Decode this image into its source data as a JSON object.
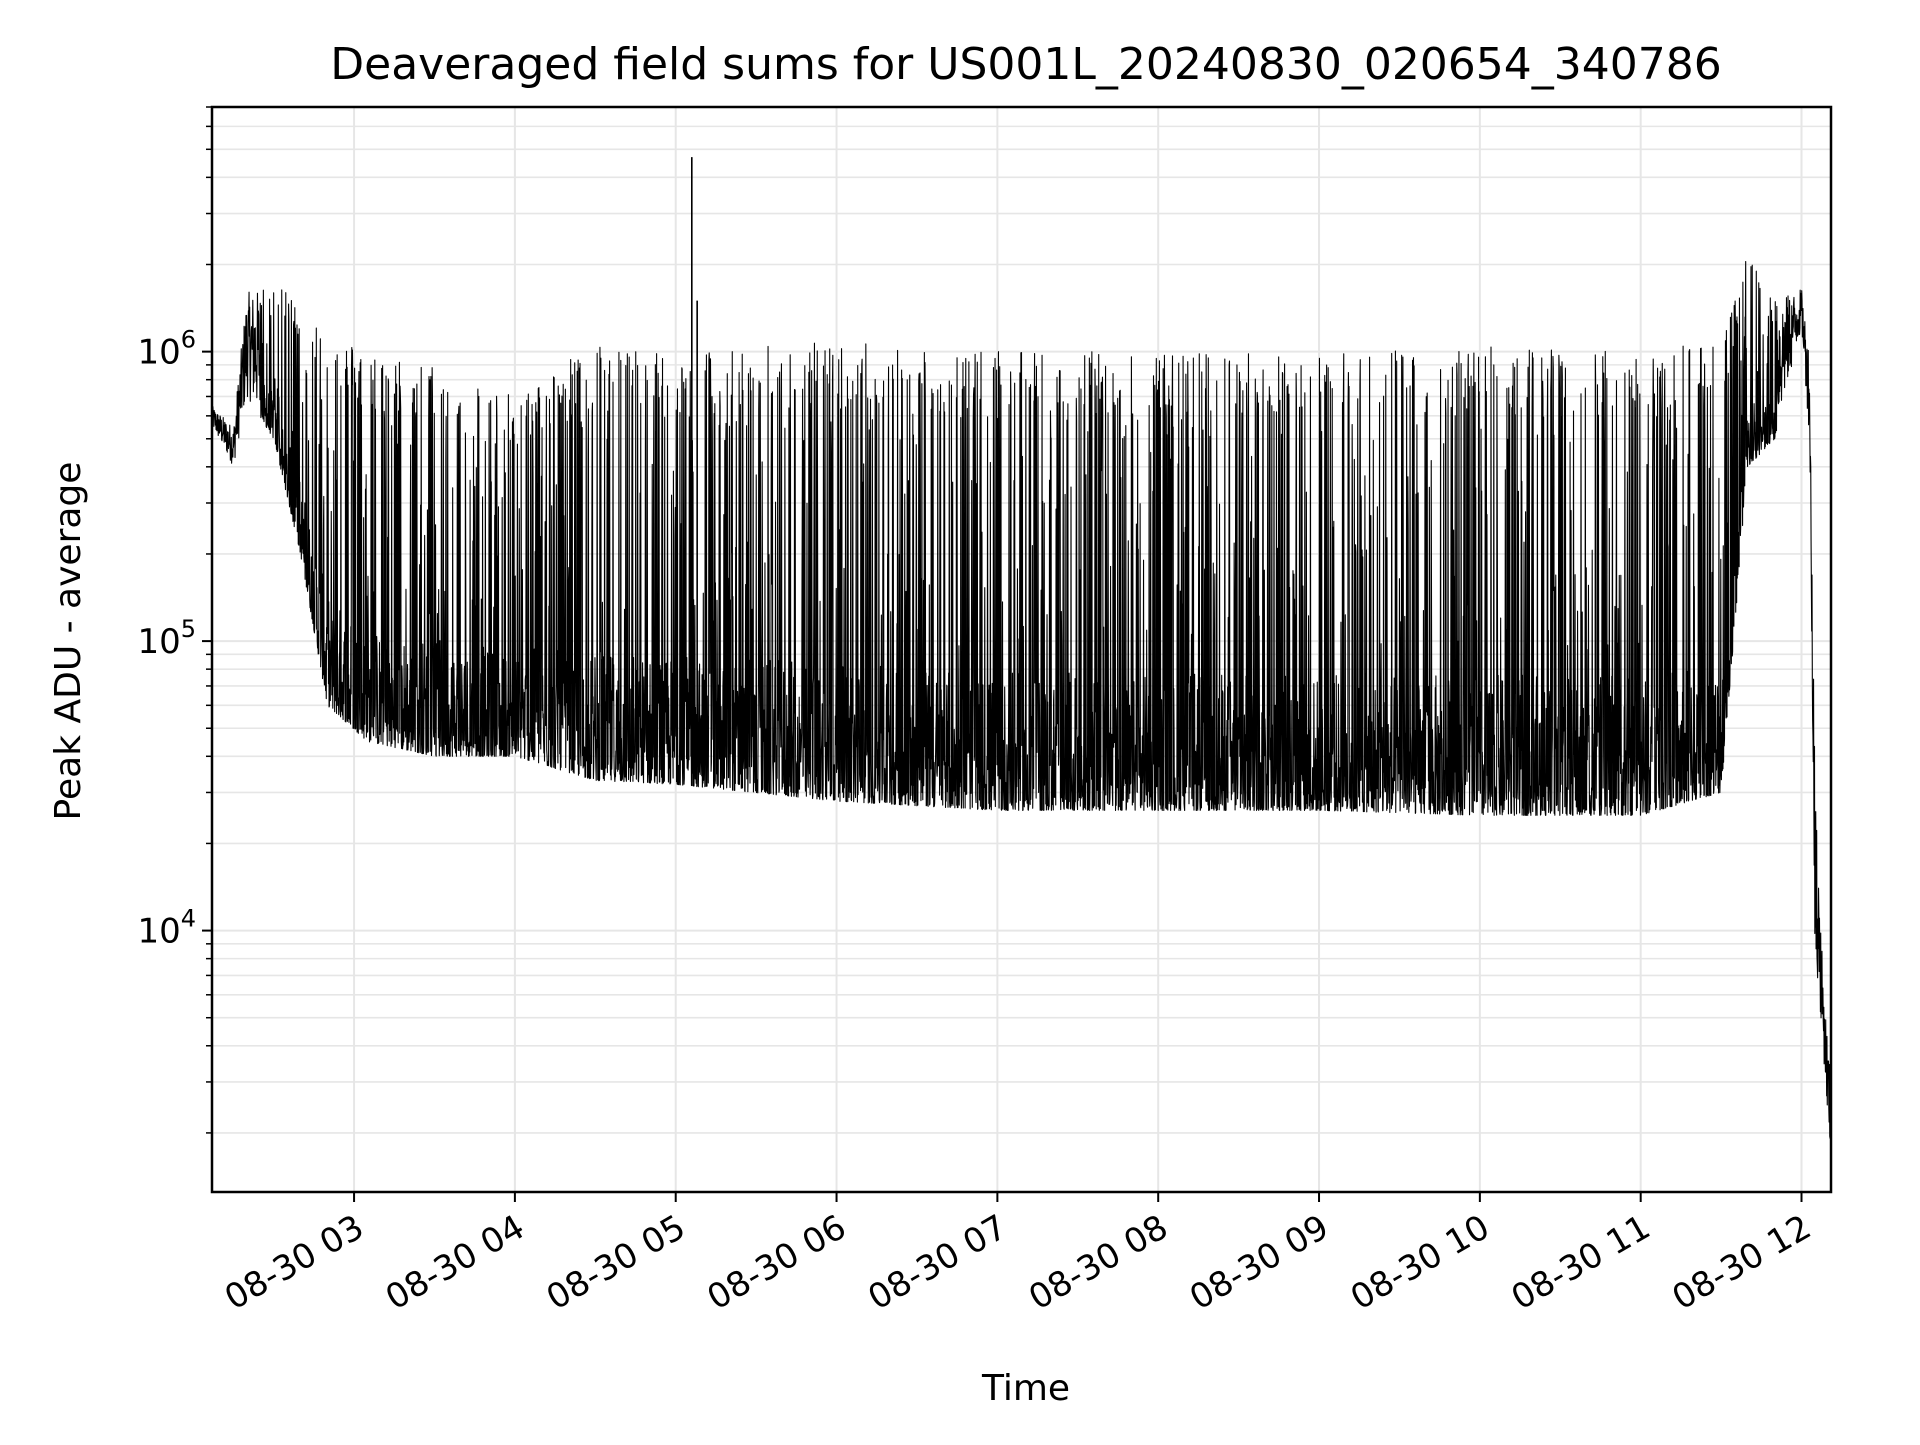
{
  "chart_data": {
    "type": "line",
    "title": "Deaveraged field sums for US001L_20240830_020654_340786",
    "xlabel": "Time",
    "ylabel": "Peak ADU - average",
    "yscale": "log",
    "ylim": [
      1250,
      7000000
    ],
    "xlim": [
      "08-30 02:07",
      "08-30 12:11"
    ],
    "grid": true,
    "legend": "none",
    "x_ticks": [
      "08-30 03",
      "08-30 04",
      "08-30 05",
      "08-30 06",
      "08-30 07",
      "08-30 08",
      "08-30 09",
      "08-30 10",
      "08-30 11",
      "08-30 12"
    ],
    "y_ticks": [
      {
        "value": 10000,
        "base": "10",
        "exp": "4"
      },
      {
        "value": 100000,
        "base": "10",
        "exp": "5"
      },
      {
        "value": 1000000,
        "base": "10",
        "exp": "6"
      }
    ],
    "series": [
      {
        "color": "#000000",
        "envelope": [
          {
            "t": "08-30 02:07",
            "low": 550000,
            "high": 650000
          },
          {
            "t": "08-30 02:15",
            "low": 400000,
            "high": 550000
          },
          {
            "t": "08-30 02:20",
            "low": 700000,
            "high": 1600000
          },
          {
            "t": "08-30 02:30",
            "low": 500000,
            "high": 1700000
          },
          {
            "t": "08-30 02:40",
            "low": 200000,
            "high": 1500000
          },
          {
            "t": "08-30 02:50",
            "low": 60000,
            "high": 1200000
          },
          {
            "t": "08-30 03:05",
            "low": 45000,
            "high": 1000000
          },
          {
            "t": "08-30 03:30",
            "low": 40000,
            "high": 900000
          },
          {
            "t": "08-30 04:00",
            "low": 40000,
            "high": 700000
          },
          {
            "t": "08-30 04:30",
            "low": 33000,
            "high": 1100000
          },
          {
            "t": "08-30 05:00",
            "low": 32000,
            "high": 1000000
          },
          {
            "t": "08-30 06:00",
            "low": 28000,
            "high": 1100000
          },
          {
            "t": "08-30 07:00",
            "low": 26000,
            "high": 1000000
          },
          {
            "t": "08-30 08:00",
            "low": 26000,
            "high": 1000000
          },
          {
            "t": "08-30 09:00",
            "low": 26000,
            "high": 1000000
          },
          {
            "t": "08-30 10:00",
            "low": 25000,
            "high": 1050000
          },
          {
            "t": "08-30 11:00",
            "low": 25000,
            "high": 1000000
          },
          {
            "t": "08-30 11:30",
            "low": 30000,
            "high": 1100000
          },
          {
            "t": "08-30 11:40",
            "low": 400000,
            "high": 2200000
          },
          {
            "t": "08-30 11:50",
            "low": 500000,
            "high": 1500000
          },
          {
            "t": "08-30 12:00",
            "low": 1200000,
            "high": 1650000
          },
          {
            "t": "08-30 12:03",
            "low": 500000,
            "high": 1000000
          },
          {
            "t": "08-30 12:05",
            "low": 9000,
            "high": 35000
          },
          {
            "t": "08-30 12:08",
            "low": 4000,
            "high": 7000
          },
          {
            "t": "08-30 12:11",
            "low": 1500,
            "high": 3000
          }
        ],
        "spikes": [
          {
            "t": "08-30 05:06",
            "value": 4700000
          },
          {
            "t": "08-30 05:08",
            "value": 1500000
          }
        ]
      }
    ]
  }
}
